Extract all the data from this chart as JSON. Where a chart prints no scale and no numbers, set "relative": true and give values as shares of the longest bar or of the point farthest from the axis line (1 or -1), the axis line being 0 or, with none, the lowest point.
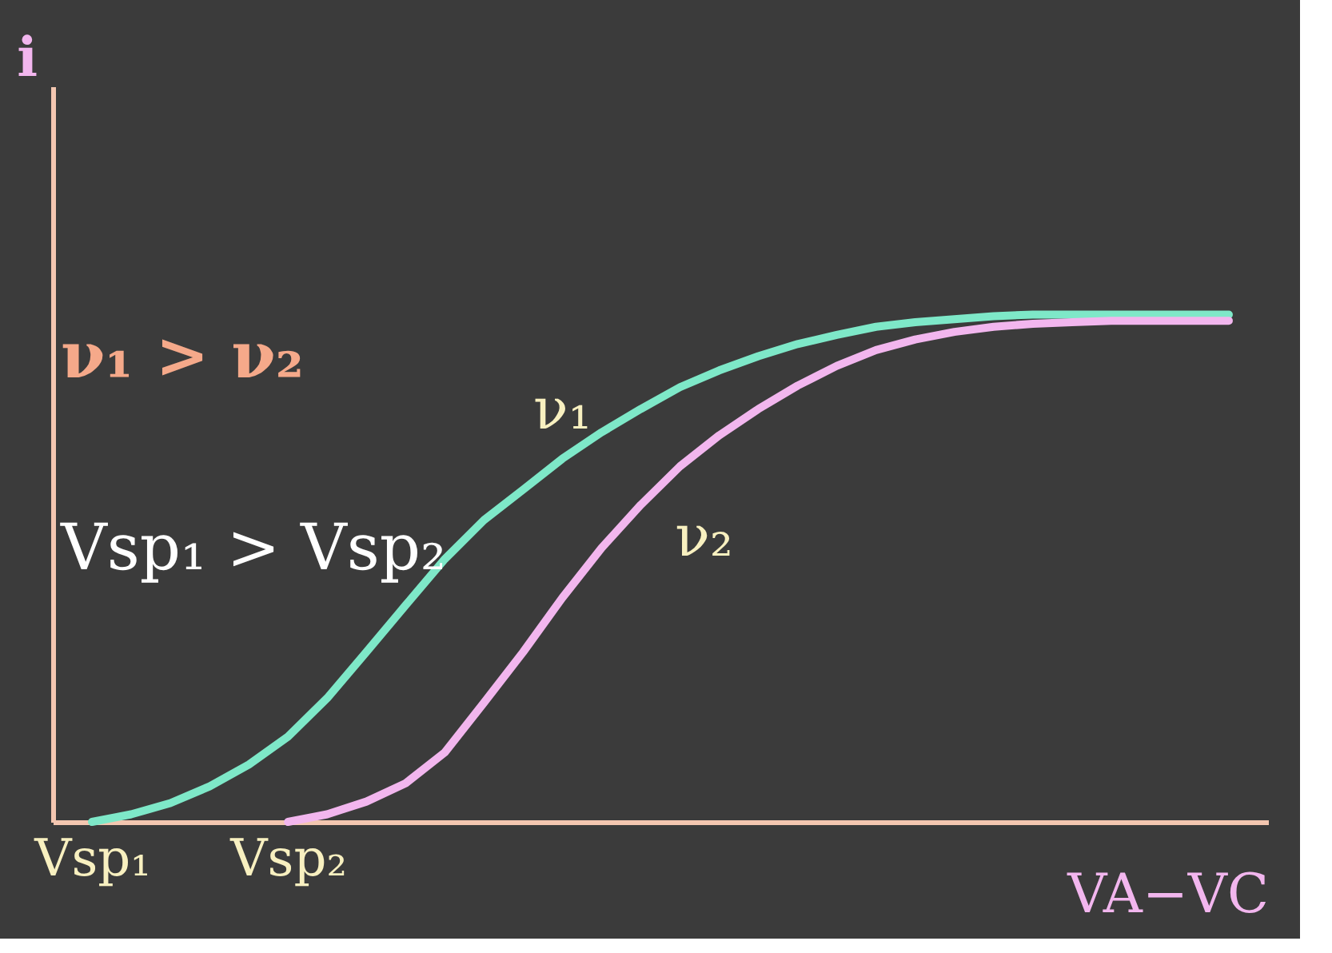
{
  "chart_data": {
    "type": "line",
    "relative": true,
    "legend": false,
    "grid": false,
    "xlabel": "VA−VC",
    "ylabel": "i",
    "categories": [
      "Vsp₁",
      null,
      null,
      null,
      null,
      "Vsp₂",
      null,
      null,
      null,
      null,
      null,
      null,
      null,
      null,
      null,
      null,
      null,
      null,
      null,
      null,
      null,
      null,
      null,
      null,
      null,
      null,
      null,
      null,
      null,
      null
    ],
    "series": [
      {
        "name": "ν₁",
        "color": "#7ee8c8",
        "values": [
          0,
          0.015,
          0.037,
          0.07,
          0.113,
          0.168,
          0.244,
          0.335,
          0.427,
          0.518,
          0.595,
          0.655,
          0.716,
          0.768,
          0.814,
          0.857,
          0.89,
          0.918,
          0.942,
          0.96,
          0.976,
          0.985,
          0.991,
          0.997,
          1,
          1,
          1,
          1,
          1,
          1
        ]
      },
      {
        "name": "ν₂",
        "color": "#f2b6ee",
        "values": [
          null,
          null,
          null,
          null,
          null,
          0,
          0.015,
          0.04,
          0.076,
          0.137,
          0.235,
          0.335,
          0.442,
          0.54,
          0.625,
          0.701,
          0.762,
          0.814,
          0.86,
          0.899,
          0.93,
          0.951,
          0.966,
          0.976,
          0.982,
          0.985,
          0.988,
          0.988,
          0.988,
          0.988
        ]
      }
    ],
    "annotations": [
      "ν₁ > ν₂",
      "Vsp₁ > Vsp₂"
    ]
  }
}
